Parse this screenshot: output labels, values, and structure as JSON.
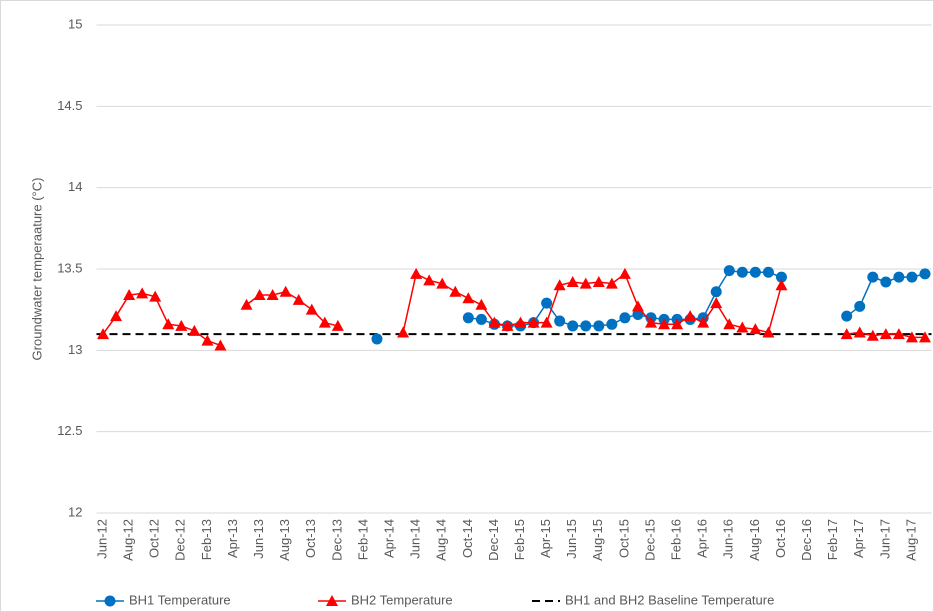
{
  "chart_data": {
    "type": "line",
    "y_label": "Groundwater temperaature (°C)",
    "categories": [
      "Jun-12",
      null,
      "Aug-12",
      null,
      "Oct-12",
      null,
      "Dec-12",
      null,
      "Feb-13",
      null,
      "Apr-13",
      null,
      "Jun-13",
      null,
      "Aug-13",
      null,
      "Oct-13",
      null,
      "Dec-13",
      null,
      "Feb-14",
      null,
      "Apr-14",
      null,
      "Jun-14",
      null,
      "Aug-14",
      null,
      "Oct-14",
      null,
      "Dec-14",
      null,
      "Feb-15",
      null,
      "Apr-15",
      null,
      "Jun-15",
      null,
      "Aug-15",
      null,
      "Oct-15",
      null,
      "Dec-15",
      null,
      "Feb-16",
      null,
      "Apr-16",
      null,
      "Jun-16",
      null,
      "Aug-16",
      null,
      "Oct-16",
      null,
      "Dec-16",
      null,
      "Feb-17",
      null,
      "Apr-17",
      null,
      "Jun-17",
      null,
      "Aug-17",
      null
    ],
    "series": [
      {
        "name": "BH1 Temperature",
        "color": "#0070c0",
        "marker": "circle",
        "values": [
          null,
          null,
          null,
          null,
          null,
          null,
          null,
          null,
          null,
          null,
          null,
          null,
          null,
          null,
          null,
          null,
          null,
          null,
          null,
          null,
          null,
          13.07,
          null,
          null,
          null,
          null,
          null,
          null,
          13.2,
          13.19,
          13.16,
          13.15,
          13.15,
          13.17,
          13.29,
          13.18,
          13.15,
          13.15,
          13.15,
          13.16,
          13.2,
          13.22,
          13.2,
          13.19,
          13.19,
          13.19,
          13.2,
          13.36,
          13.49,
          13.48,
          13.48,
          13.48,
          13.45,
          null,
          null,
          null,
          null,
          13.21,
          13.27,
          13.45,
          13.42,
          13.45,
          13.45,
          13.47
        ]
      },
      {
        "name": "BH2 Temperature",
        "color": "#ff0000",
        "marker": "triangle",
        "values": [
          13.1,
          13.21,
          13.34,
          13.35,
          13.33,
          13.16,
          13.15,
          13.12,
          13.06,
          13.03,
          null,
          13.28,
          13.34,
          13.34,
          13.36,
          13.31,
          13.25,
          13.17,
          13.15,
          null,
          null,
          null,
          null,
          13.11,
          13.47,
          13.43,
          13.41,
          13.36,
          13.32,
          13.28,
          13.17,
          13.15,
          13.17,
          13.17,
          13.17,
          13.4,
          13.42,
          13.41,
          13.42,
          13.41,
          13.47,
          13.27,
          13.17,
          13.16,
          13.16,
          13.21,
          13.17,
          13.29,
          13.16,
          13.14,
          13.13,
          13.11,
          13.4,
          null,
          null,
          null,
          null,
          13.1,
          13.11,
          13.09,
          13.1,
          13.1,
          13.08,
          13.08
        ]
      }
    ],
    "baseline": {
      "name": "BH1 and BH2 Baseline Temperature",
      "color": "#000000",
      "value": 13.1
    },
    "ylim": [
      12,
      15
    ],
    "yticks": [
      12,
      12.5,
      13,
      13.5,
      14,
      14.5,
      15
    ],
    "grid": true,
    "legend": "bottom"
  }
}
